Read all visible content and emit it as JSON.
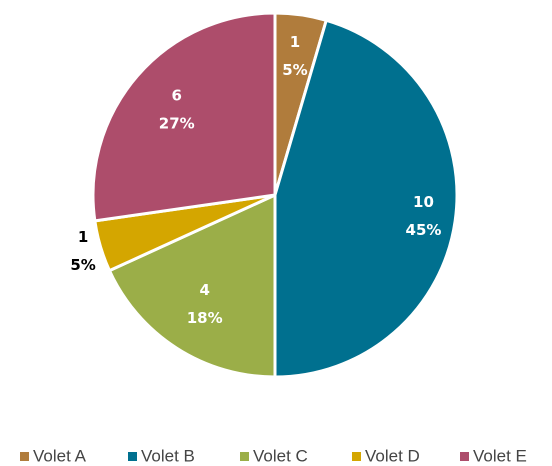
{
  "chart_data": {
    "type": "pie",
    "categories": [
      "Volet A",
      "Volet B",
      "Volet C",
      "Volet D",
      "Volet E"
    ],
    "values": [
      1,
      10,
      4,
      1,
      6
    ],
    "percent_labels": [
      "5%",
      "45%",
      "18%",
      "5%",
      "27%"
    ],
    "colors": [
      "#B07C3C",
      "#00708F",
      "#9BAE48",
      "#D4A600",
      "#AD4D6B"
    ],
    "legend": "bottom"
  }
}
